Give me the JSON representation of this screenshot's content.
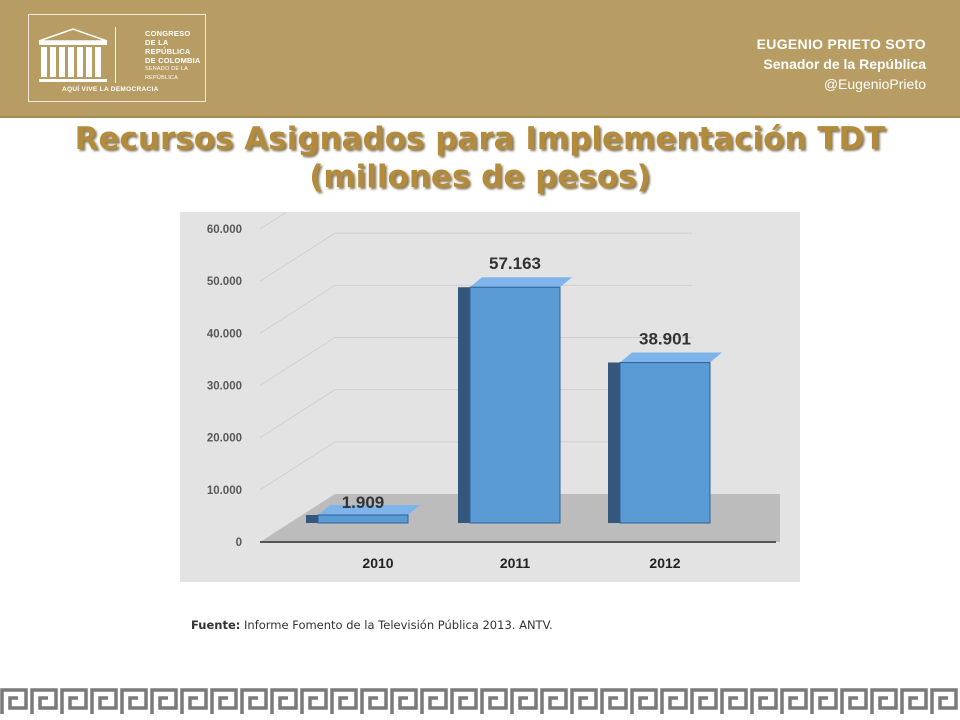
{
  "header": {
    "logo": {
      "line1": "CONGRESO",
      "line2": "DE LA REPÚBLICA",
      "line3": "DE COLOMBIA",
      "line4": "SENADO DE LA REPÚBLICA",
      "tagline": "AQUÍ VIVE LA DEMOCRACIA"
    },
    "senator_name": "EUGENIO PRIETO SOTO",
    "senator_role": "Senador de la República",
    "senator_handle": "@EugenioPrieto"
  },
  "slide": {
    "title_line1": "Recursos Asignados para Implementación TDT",
    "title_line2": "(millones de pesos)"
  },
  "colors": {
    "header_bg": "#b79d64",
    "title": "#b38b3c",
    "bar_fill": "#5b9bd5",
    "chart_bg": "#e3e3e3"
  },
  "chart_data": {
    "type": "bar",
    "categories": [
      "2010",
      "2011",
      "2012"
    ],
    "values": [
      1909,
      57163,
      38901
    ],
    "value_labels": [
      "1.909",
      "57.163",
      "38.901"
    ],
    "y_ticks": [
      "0",
      "10.000",
      "20.000",
      "30.000",
      "40.000",
      "50.000",
      "60.000"
    ],
    "ylim": [
      0,
      60000
    ],
    "grid": true,
    "legend": "none",
    "style": "3d"
  },
  "source": {
    "label": "Fuente:",
    "text": "Informe Fomento de la Televisión Pública 2013. ANTV."
  }
}
